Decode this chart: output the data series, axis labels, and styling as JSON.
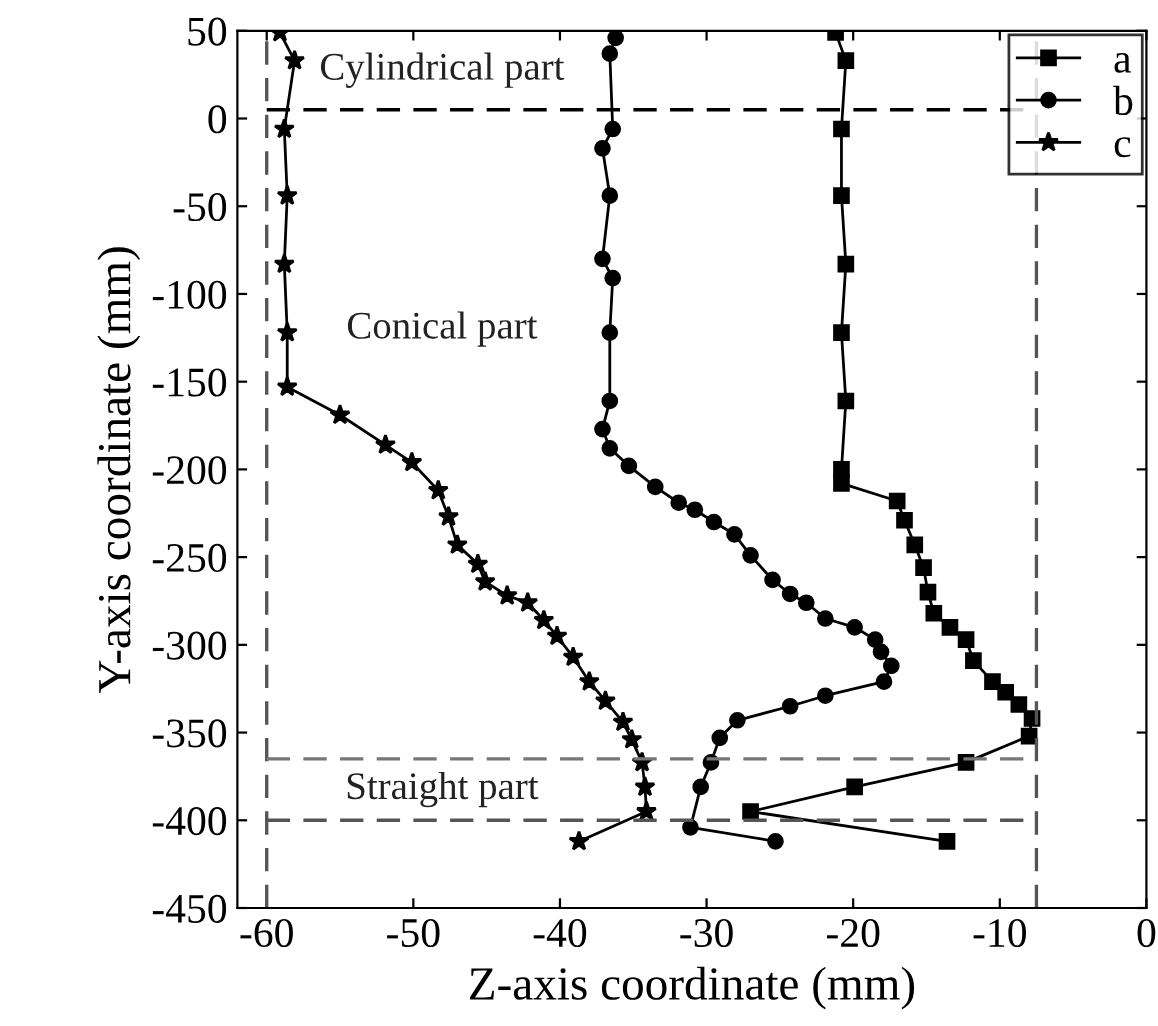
{
  "chart_data": {
    "type": "line",
    "xlabel": "Z-axis coordinate (mm)",
    "ylabel": "Y-axis coordinate (mm)",
    "xlim": [
      -62,
      0
    ],
    "xticks": [
      -60,
      -50,
      -40,
      -30,
      -20,
      -10,
      0
    ],
    "ylim": [
      -450,
      50
    ],
    "yticks": [
      50,
      0,
      -50,
      -100,
      -150,
      -200,
      -250,
      -300,
      -350,
      -400,
      -450
    ],
    "grid": false,
    "legend": "top right",
    "series": [
      {
        "name": "a",
        "color": "#000000",
        "marker": "square",
        "x": [
          -21.2,
          -20.5,
          -20.8,
          -20.8,
          -20.5,
          -20.8,
          -20.5,
          -20.8,
          -20.8,
          -17,
          -16.5,
          -15.8,
          -15.2,
          -14.9,
          -14.5,
          -13.4,
          -12.3,
          -11.8,
          -10.5,
          -9.6,
          -8.7,
          -7.8,
          -8,
          -12.3,
          -19.9,
          -27,
          -13.6
        ],
        "values": [
          49,
          33,
          -6,
          -44,
          -83,
          -122,
          -161,
          -200,
          -208,
          -218,
          -229,
          -243,
          -256,
          -270,
          -282,
          -290,
          -297,
          -309,
          -321,
          -327,
          -334,
          -342,
          -352,
          -367,
          -381,
          -395,
          -412
        ]
      },
      {
        "name": "b",
        "color": "#000000",
        "marker": "circle",
        "x": [
          -36.2,
          -36.6,
          -36.4,
          -37.1,
          -36.6,
          -37.1,
          -36.4,
          -36.6,
          -36.6,
          -37.1,
          -36.6,
          -35.3,
          -33.5,
          -31.9,
          -30.8,
          -29.5,
          -28.1,
          -27,
          -25.5,
          -24.3,
          -23.2,
          -21.9,
          -19.9,
          -18.5,
          -18.1,
          -17.4,
          -17.9,
          -21.9,
          -24.3,
          -27.9,
          -29.1,
          -29.7,
          -30.4,
          -31.1,
          -25.3
        ],
        "values": [
          46,
          37,
          -6,
          -17,
          -44,
          -80,
          -91,
          -122,
          -161,
          -177,
          -188,
          -198,
          -210,
          -219,
          -223,
          -230,
          -237,
          -249,
          -263,
          -271,
          -276,
          -285,
          -290,
          -297,
          -304,
          -312,
          -321,
          -329,
          -335,
          -343,
          -353,
          -367,
          -381,
          -404,
          -412
        ]
      },
      {
        "name": "c",
        "color": "#000000",
        "marker": "star",
        "x": [
          -59.1,
          -58.1,
          -58.8,
          -58.6,
          -58.8,
          -58.6,
          -58.6,
          -55,
          -51.9,
          -50.1,
          -48.3,
          -47.6,
          -47,
          -45.6,
          -45.1,
          -43.6,
          -42.2,
          -41.1,
          -40.2,
          -39.1,
          -38,
          -36.9,
          -35.7,
          -35.1,
          -34.4,
          -34.2,
          -34.1,
          -38.7
        ],
        "values": [
          49,
          33,
          -6,
          -44,
          -83,
          -122,
          -153,
          -169,
          -186,
          -196,
          -212,
          -227,
          -243,
          -254,
          -264,
          -272,
          -276,
          -286,
          -295,
          -307,
          -321,
          -332,
          -344,
          -354,
          -367,
          -381,
          -395,
          -412
        ]
      }
    ],
    "ref_lines": [
      {
        "axis": "x",
        "value": -60,
        "color": "#555555",
        "line_style": "dashed"
      },
      {
        "axis": "x",
        "value": -7.5,
        "color": "#555555",
        "line_style": "dashed"
      },
      {
        "axis": "y",
        "value": 5,
        "color": "#000000",
        "line_style": "dashed"
      },
      {
        "axis": "y",
        "value": -365,
        "color": "#777777",
        "line_style": "dashed"
      },
      {
        "axis": "y",
        "value": -400,
        "color": "#555555",
        "line_style": "dashed"
      }
    ],
    "annotations": [
      "Cylindrical part",
      "Conical part",
      "Straight part"
    ]
  }
}
